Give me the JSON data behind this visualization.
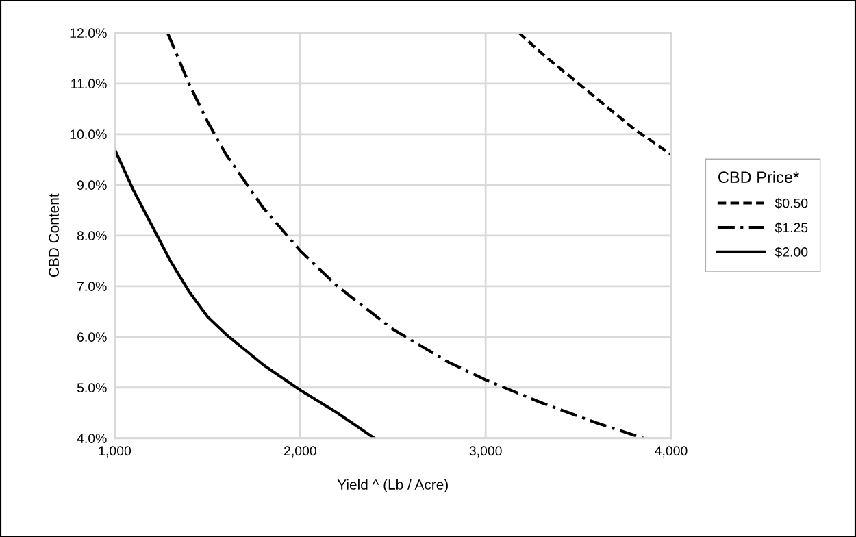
{
  "chart_data": {
    "type": "line",
    "xlabel": "Yield ^ (Lb / Acre)",
    "ylabel": "CBD Content",
    "legend_title": "CBD Price*",
    "legend": "right",
    "grid": true,
    "marker": "none",
    "xlim": [
      1000,
      4000
    ],
    "xticks": [
      {
        "value": 1000,
        "label": "1,000"
      },
      {
        "value": 2000,
        "label": "2,000"
      },
      {
        "value": 3000,
        "label": "3,000"
      },
      {
        "value": 4000,
        "label": "4,000"
      }
    ],
    "ylim": [
      4.0,
      12.0
    ],
    "yticks": [
      {
        "value": 4,
        "label": "4.0%"
      },
      {
        "value": 5,
        "label": "5.0%"
      },
      {
        "value": 6,
        "label": "6.0%"
      },
      {
        "value": 7,
        "label": "7.0%"
      },
      {
        "value": 8,
        "label": "8.0%"
      },
      {
        "value": 9,
        "label": "9.0%"
      },
      {
        "value": 10,
        "label": "10.0%"
      },
      {
        "value": 11,
        "label": "11.0%"
      },
      {
        "value": 12,
        "label": "12.0%"
      }
    ],
    "series": [
      {
        "name": "$0.50",
        "color": "#000000",
        "line_style": "dashed",
        "x": [
          3180,
          3300,
          3400,
          3500,
          3600,
          3700,
          3800,
          3900,
          4000
        ],
        "values": [
          12.0,
          11.6,
          11.3,
          11.0,
          10.7,
          10.4,
          10.1,
          9.85,
          9.6
        ]
      },
      {
        "name": "$1.25",
        "color": "#000000",
        "line_style": "dashdot",
        "x": [
          1285,
          1400,
          1500,
          1600,
          1800,
          2000,
          2200,
          2500,
          2800,
          3000,
          3300,
          3600,
          3850
        ],
        "values": [
          12.0,
          11.0,
          10.25,
          9.6,
          8.55,
          7.7,
          7.0,
          6.15,
          5.5,
          5.15,
          4.7,
          4.3,
          4.0
        ]
      },
      {
        "name": "$2.00",
        "color": "#000000",
        "line_style": "solid",
        "x": [
          1000,
          1100,
          1200,
          1300,
          1400,
          1500,
          1600,
          1700,
          1800,
          1900,
          2000,
          2200,
          2400
        ],
        "values": [
          9.7,
          8.9,
          8.2,
          7.5,
          6.9,
          6.4,
          6.05,
          5.75,
          5.45,
          5.2,
          4.95,
          4.5,
          4.0
        ]
      }
    ]
  }
}
